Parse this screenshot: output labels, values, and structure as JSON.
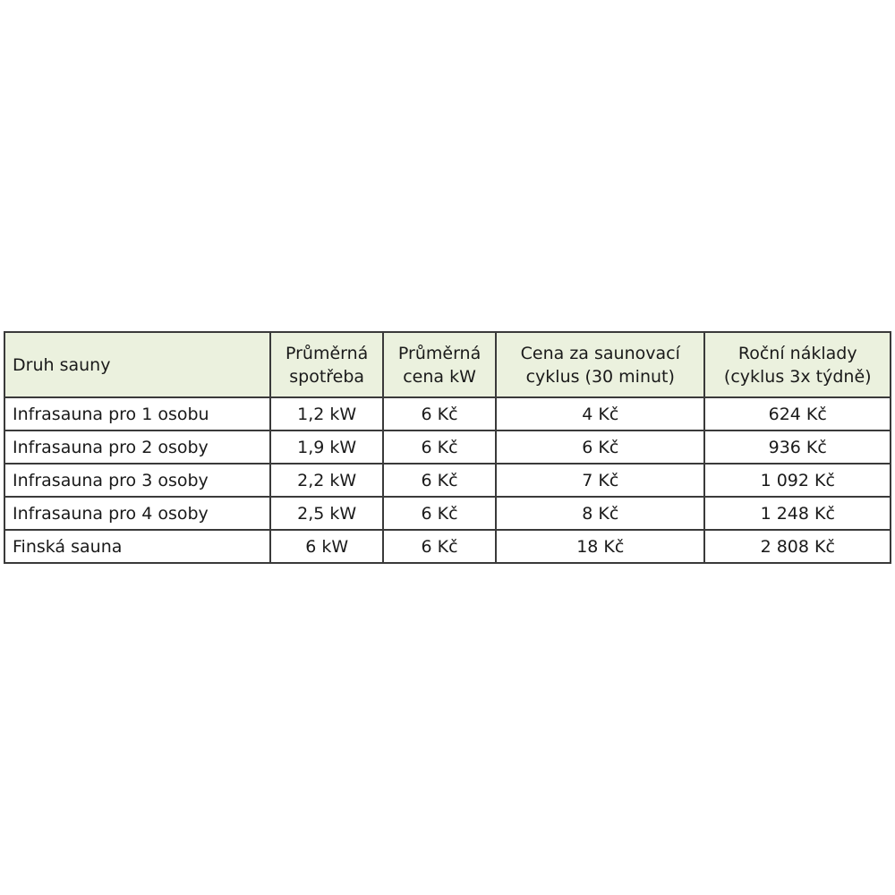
{
  "table": {
    "header_bg": "#ebf1de",
    "headers": [
      [
        "Druh sauny"
      ],
      [
        "Průměrná",
        "spotřeba"
      ],
      [
        "Průměrná",
        "cena kW"
      ],
      [
        "Cena za saunovací",
        "cyklus (30 minut)"
      ],
      [
        "Roční náklady",
        "(cyklus 3x týdně)"
      ]
    ],
    "rows": [
      [
        "Infrasauna pro 1 osobu",
        "1,2 kW",
        "6 Kč",
        "4 Kč",
        "624 Kč"
      ],
      [
        "Infrasauna pro 2 osoby",
        "1,9 kW",
        "6 Kč",
        "6 Kč",
        "936 Kč"
      ],
      [
        "Infrasauna pro 3 osoby",
        "2,2 kW",
        "6 Kč",
        "7 Kč",
        "1 092 Kč"
      ],
      [
        "Infrasauna pro 4 osoby",
        "2,5 kW",
        "6 Kč",
        "8 Kč",
        "1 248 Kč"
      ],
      [
        "Finská sauna",
        "6 kW",
        "6 Kč",
        "18 Kč",
        "2 808 Kč"
      ]
    ]
  }
}
